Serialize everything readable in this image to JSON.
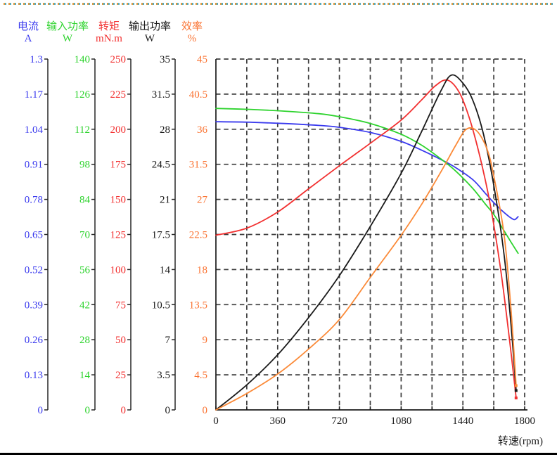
{
  "chart_data": {
    "type": "line",
    "title": "",
    "xlabel": "转速(rpm)",
    "grid": {
      "on": true,
      "color": "#3c3c3c",
      "dash": "6.5 4.8"
    },
    "x_axis": {
      "min": 0,
      "max": 1800,
      "minor_step": 180,
      "tick_labels": [
        "0",
        "360",
        "720",
        "1080",
        "1440",
        "1800"
      ]
    },
    "series": [
      {
        "name": "电流",
        "unit": "A",
        "color": "#3a3aee",
        "axis_max": 1.3,
        "end_marker": false,
        "tick_labels": [
          "1.3",
          "1.17",
          "1.04",
          "0.91",
          "0.78",
          "0.65",
          "0.52",
          "0.39",
          "0.26",
          "0.13",
          "0"
        ],
        "points": [
          [
            0,
            1.068
          ],
          [
            200,
            1.066
          ],
          [
            400,
            1.061
          ],
          [
            600,
            1.054
          ],
          [
            720,
            1.047
          ],
          [
            900,
            1.028
          ],
          [
            1080,
            0.995
          ],
          [
            1200,
            0.962
          ],
          [
            1311,
            0.928
          ],
          [
            1400,
            0.897
          ],
          [
            1500,
            0.852
          ],
          [
            1570,
            0.803
          ],
          [
            1620,
            0.768
          ],
          [
            1670,
            0.737
          ],
          [
            1710,
            0.716
          ],
          [
            1740,
            0.705
          ],
          [
            1762,
            0.716
          ]
        ]
      },
      {
        "name": "输入功率",
        "unit": "W",
        "color": "#2ed32e",
        "axis_max": 140,
        "end_marker": false,
        "tick_labels": [
          "140",
          "126",
          "112",
          "98",
          "84",
          "70",
          "56",
          "42",
          "28",
          "14",
          "0"
        ],
        "points": [
          [
            0,
            120.3
          ],
          [
            200,
            119.9
          ],
          [
            400,
            119.2
          ],
          [
            600,
            118.2
          ],
          [
            720,
            117.0
          ],
          [
            900,
            114.3
          ],
          [
            1080,
            110.0
          ],
          [
            1200,
            105.6
          ],
          [
            1311,
            100.2
          ],
          [
            1400,
            95.2
          ],
          [
            1500,
            88.2
          ],
          [
            1570,
            82.2
          ],
          [
            1620,
            78.0
          ],
          [
            1680,
            71.5
          ],
          [
            1720,
            67.0
          ],
          [
            1762,
            62.5
          ]
        ]
      },
      {
        "name": "转矩",
        "unit": "mN.m",
        "color": "#f23030",
        "axis_max": 250,
        "end_marker": true,
        "tick_labels": [
          "250",
          "225",
          "200",
          "175",
          "150",
          "125",
          "100",
          "75",
          "50",
          "25",
          "0"
        ],
        "points": [
          [
            0,
            124.5
          ],
          [
            180,
            129.5
          ],
          [
            360,
            141
          ],
          [
            540,
            157.5
          ],
          [
            720,
            174
          ],
          [
            900,
            190
          ],
          [
            1080,
            206.5
          ],
          [
            1200,
            221
          ],
          [
            1280,
            231
          ],
          [
            1350,
            235
          ],
          [
            1420,
            226
          ],
          [
            1480,
            207
          ],
          [
            1540,
            180
          ],
          [
            1600,
            146
          ],
          [
            1660,
            100
          ],
          [
            1710,
            52
          ],
          [
            1750,
            9
          ]
        ]
      },
      {
        "name": "输出功率",
        "unit": "W",
        "color": "#1a1a1a",
        "axis_max": 35,
        "end_marker": true,
        "tick_labels": [
          "35",
          "31.5",
          "28",
          "24.5",
          "21",
          "17.5",
          "14",
          "10.5",
          "7",
          "3.5",
          "0"
        ],
        "points": [
          [
            0,
            0
          ],
          [
            180,
            2.5
          ],
          [
            360,
            5.5
          ],
          [
            540,
            9.2
          ],
          [
            720,
            13.4
          ],
          [
            900,
            18.3
          ],
          [
            1080,
            23.6
          ],
          [
            1200,
            27.8
          ],
          [
            1311,
            31.8
          ],
          [
            1373,
            33.4
          ],
          [
            1440,
            32.6
          ],
          [
            1500,
            30.8
          ],
          [
            1560,
            27.5
          ],
          [
            1620,
            22.4
          ],
          [
            1680,
            15.5
          ],
          [
            1720,
            8.6
          ],
          [
            1750,
            2.0
          ]
        ]
      },
      {
        "name": "效率",
        "unit": "%",
        "color": "#fb8a38",
        "label_color": "#fa7332",
        "axis_max": 45,
        "end_marker": true,
        "tick_labels": [
          "45",
          "40.5",
          "36",
          "31.5",
          "27",
          "22.5",
          "18",
          "13.5",
          "9",
          "4.5",
          "0"
        ],
        "points": [
          [
            0,
            0
          ],
          [
            180,
            2.1
          ],
          [
            360,
            4.6
          ],
          [
            540,
            7.8
          ],
          [
            720,
            11.6
          ],
          [
            900,
            17.0
          ],
          [
            1080,
            22.4
          ],
          [
            1200,
            26.4
          ],
          [
            1311,
            30.5
          ],
          [
            1400,
            34.0
          ],
          [
            1460,
            36.0
          ],
          [
            1520,
            35.8
          ],
          [
            1580,
            33.5
          ],
          [
            1620,
            30.0
          ],
          [
            1680,
            22.5
          ],
          [
            1720,
            13.0
          ],
          [
            1750,
            3.2
          ]
        ]
      }
    ]
  }
}
